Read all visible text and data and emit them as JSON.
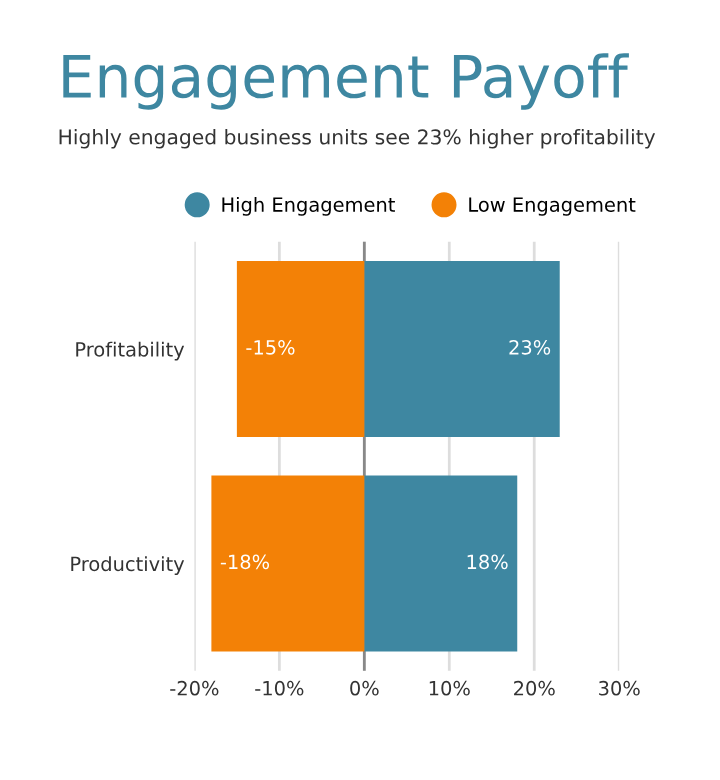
{
  "chart_data": {
    "type": "bar",
    "orientation": "horizontal",
    "stacked": true,
    "title": "Engagement Payoff",
    "subtitle": "Highly engaged business units see 23% higher profitability",
    "categories": [
      "Profitability",
      "Productivity"
    ],
    "series": [
      {
        "name": "High Engagement",
        "color": "#3e87a1",
        "values": [
          23,
          18
        ],
        "value_labels": [
          "23%",
          "18%"
        ]
      },
      {
        "name": "Low Engagement",
        "color": "#f38106",
        "values": [
          -15,
          -18
        ],
        "value_labels": [
          "-15%",
          "-18%"
        ]
      }
    ],
    "xlim": [
      -20,
      30
    ],
    "xticks": [
      {
        "value": -20,
        "label": "-20%"
      },
      {
        "value": -10,
        "label": "-10%"
      },
      {
        "value": 0,
        "label": "0%"
      },
      {
        "value": 10,
        "label": "10%"
      },
      {
        "value": 20,
        "label": "20%"
      },
      {
        "value": 30,
        "label": "30%"
      }
    ],
    "grid": "x",
    "legend": "top"
  }
}
